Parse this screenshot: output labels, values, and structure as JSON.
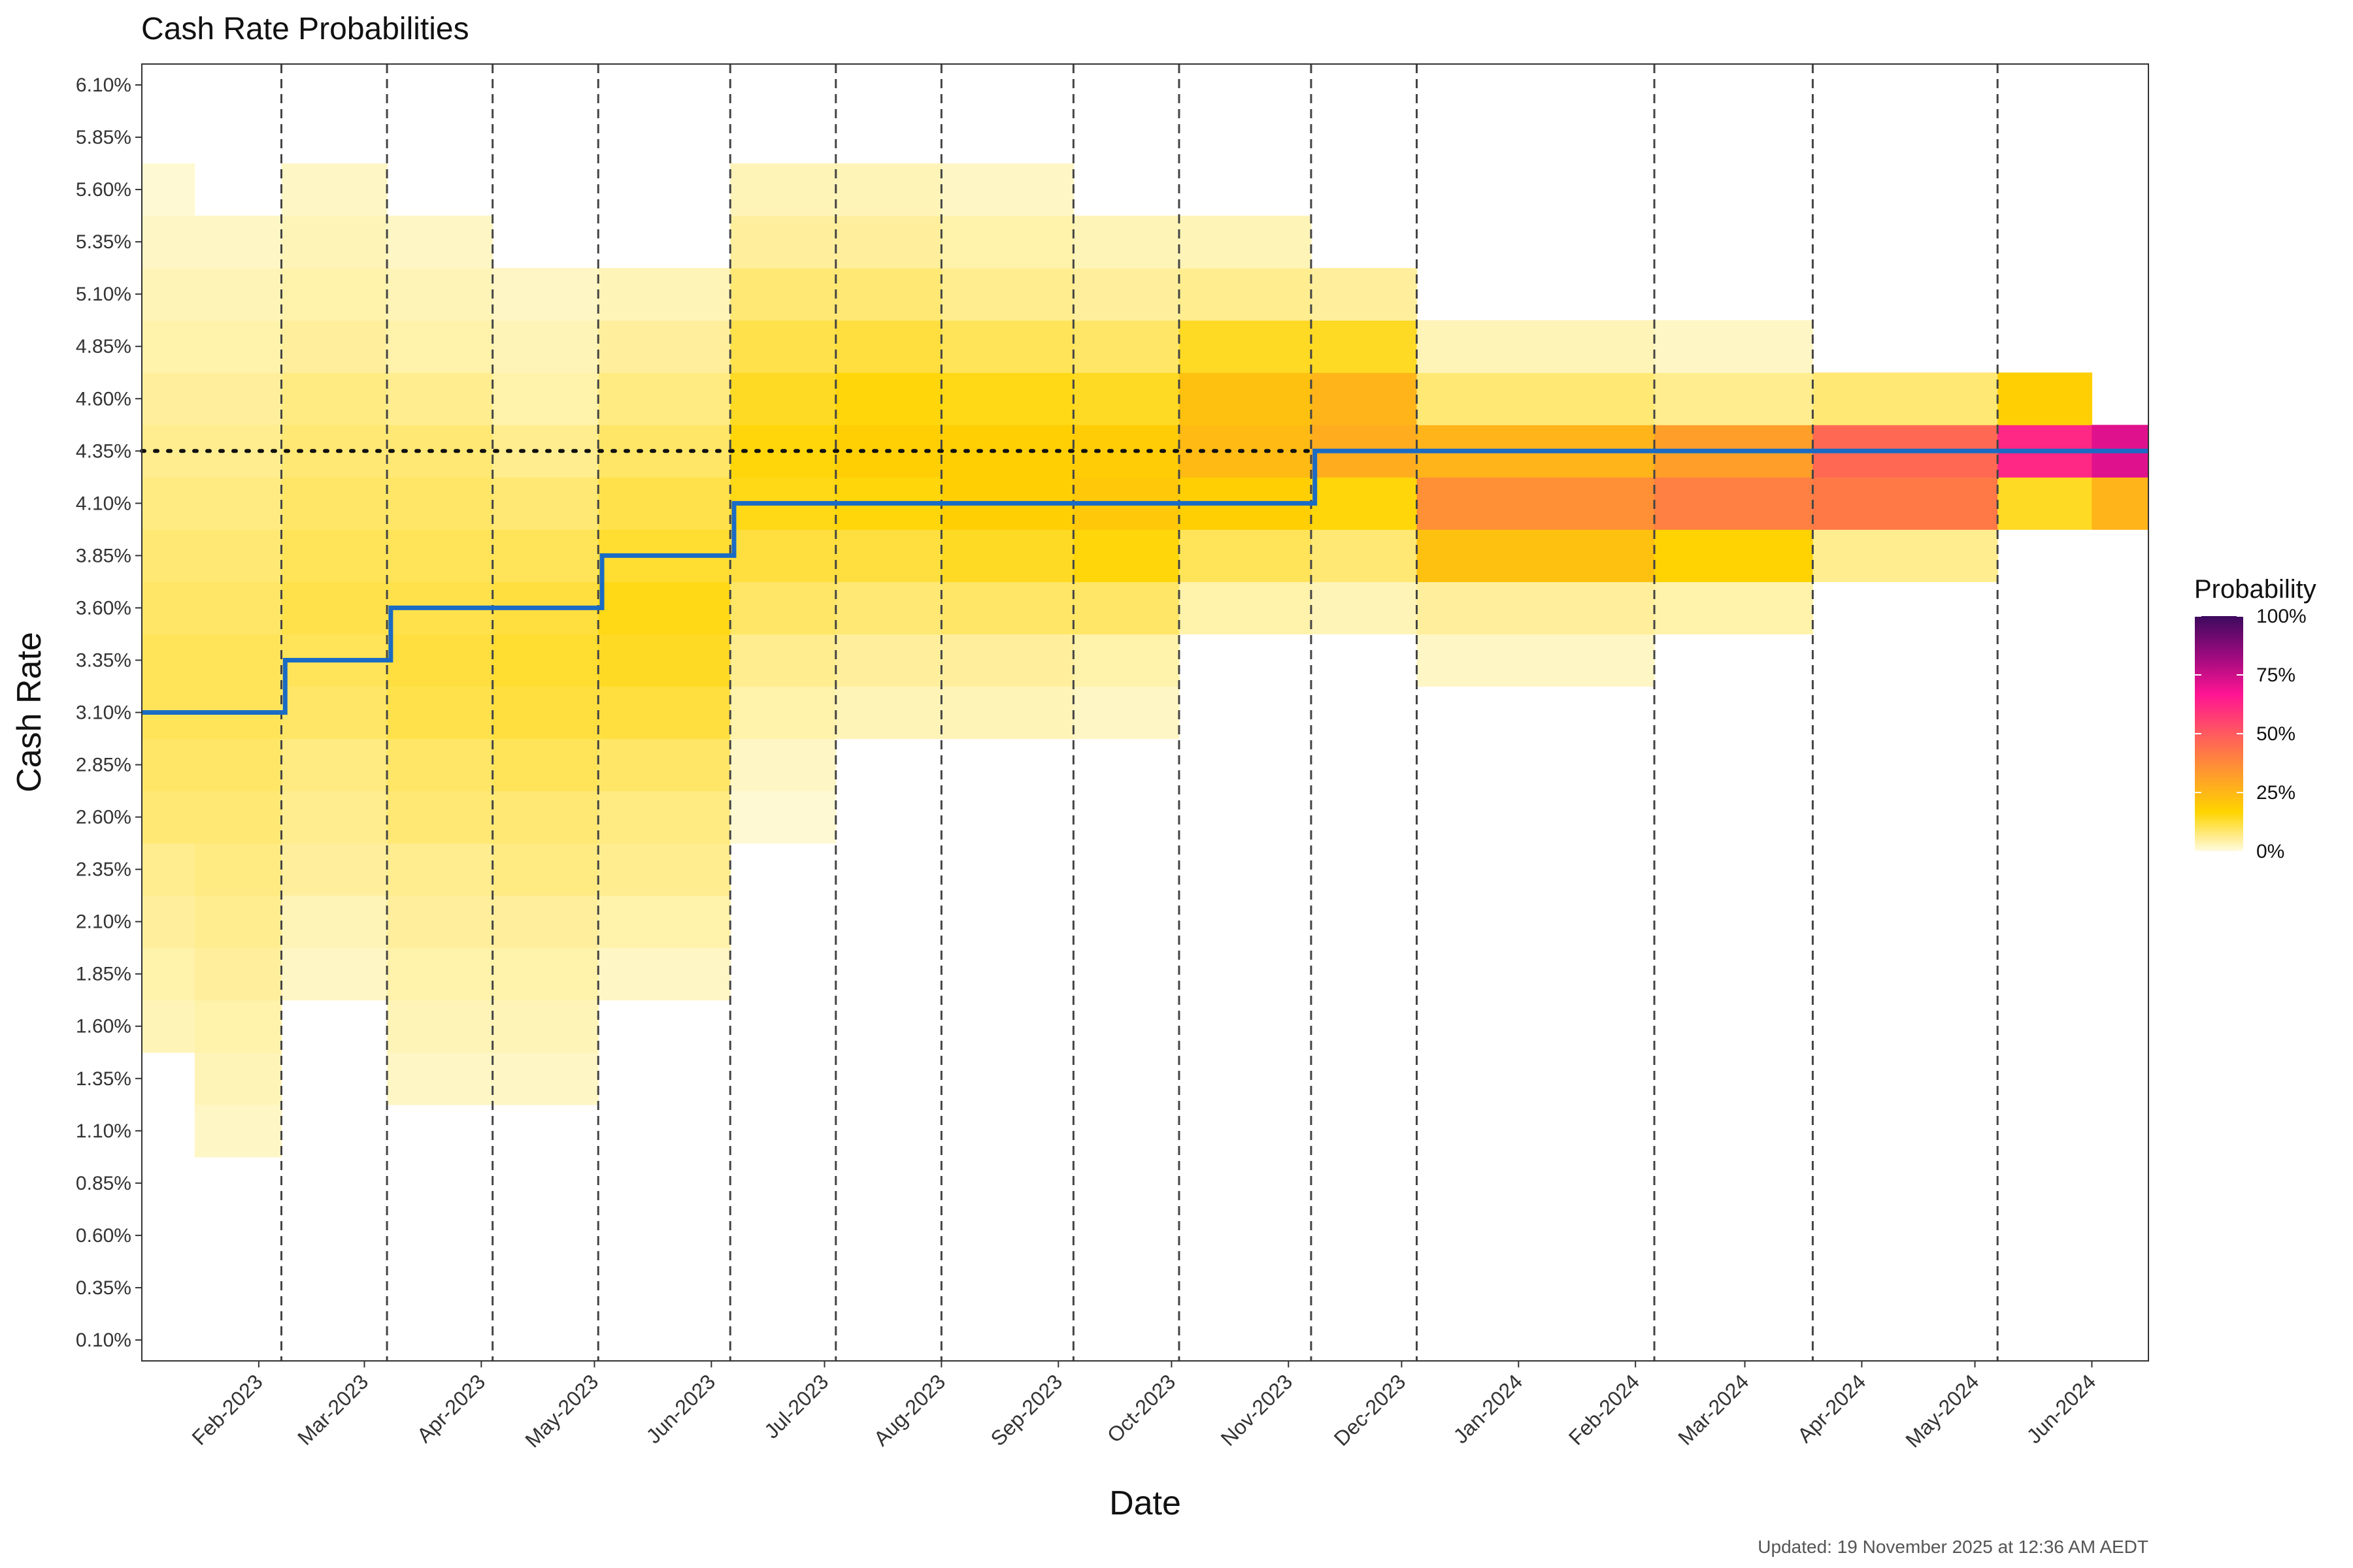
{
  "chart_data": {
    "type": "heatmap",
    "title": "Cash Rate Probabilities",
    "xlabel": "Date",
    "ylabel": "Cash Rate",
    "caption": "Updated: 19 November 2025 at 12:36 AM AEDT",
    "x_range": [
      "2023-01-01",
      "2024-06-16"
    ],
    "x_ticks": [
      {
        "date": "2023-02-01",
        "label": "Feb-2023"
      },
      {
        "date": "2023-03-01",
        "label": "Mar-2023"
      },
      {
        "date": "2023-04-01",
        "label": "Apr-2023"
      },
      {
        "date": "2023-05-01",
        "label": "May-2023"
      },
      {
        "date": "2023-06-01",
        "label": "Jun-2023"
      },
      {
        "date": "2023-07-01",
        "label": "Jul-2023"
      },
      {
        "date": "2023-08-01",
        "label": "Aug-2023"
      },
      {
        "date": "2023-09-01",
        "label": "Sep-2023"
      },
      {
        "date": "2023-10-01",
        "label": "Oct-2023"
      },
      {
        "date": "2023-11-01",
        "label": "Nov-2023"
      },
      {
        "date": "2023-12-01",
        "label": "Dec-2023"
      },
      {
        "date": "2024-01-01",
        "label": "Jan-2024"
      },
      {
        "date": "2024-02-01",
        "label": "Feb-2024"
      },
      {
        "date": "2024-03-01",
        "label": "Mar-2024"
      },
      {
        "date": "2024-04-01",
        "label": "Apr-2024"
      },
      {
        "date": "2024-05-01",
        "label": "May-2024"
      },
      {
        "date": "2024-06-01",
        "label": "Jun-2024"
      }
    ],
    "y_ticks": [
      "0.10%",
      "0.35%",
      "0.60%",
      "0.85%",
      "1.10%",
      "1.35%",
      "1.60%",
      "1.85%",
      "2.10%",
      "2.35%",
      "2.60%",
      "2.85%",
      "3.10%",
      "3.35%",
      "3.60%",
      "3.85%",
      "4.10%",
      "4.35%",
      "4.60%",
      "4.85%",
      "5.10%",
      "5.35%",
      "5.60%",
      "5.85%",
      "6.10%"
    ],
    "y_tick_values": [
      0.1,
      0.35,
      0.6,
      0.85,
      1.1,
      1.35,
      1.6,
      1.85,
      2.1,
      2.35,
      2.6,
      2.85,
      3.1,
      3.35,
      3.6,
      3.85,
      4.1,
      4.35,
      4.6,
      4.85,
      5.1,
      5.35,
      5.6,
      5.85,
      6.1
    ],
    "ylim": [
      0.0,
      6.2
    ],
    "meeting_dates": [
      "2023-02-07",
      "2023-03-07",
      "2023-04-04",
      "2023-05-02",
      "2023-06-06",
      "2023-07-04",
      "2023-08-01",
      "2023-09-05",
      "2023-10-03",
      "2023-11-07",
      "2023-12-05",
      "2024-02-06",
      "2024-03-19",
      "2024-05-07"
    ],
    "reference_line": {
      "value": 4.35,
      "style": "dotted"
    },
    "cash_rate_steps": [
      {
        "date": "2023-01-01",
        "rate": 3.1
      },
      {
        "date": "2023-02-08",
        "rate": 3.35
      },
      {
        "date": "2023-03-08",
        "rate": 3.6
      },
      {
        "date": "2023-05-03",
        "rate": 3.85
      },
      {
        "date": "2023-06-07",
        "rate": 4.1
      },
      {
        "date": "2023-11-08",
        "rate": 4.35
      }
    ],
    "heatmap_rates": [
      1.1,
      1.35,
      1.6,
      1.85,
      2.1,
      2.35,
      2.6,
      2.85,
      3.1,
      3.35,
      3.6,
      3.85,
      4.1,
      4.35,
      4.6,
      4.85,
      5.1,
      5.35,
      5.6
    ],
    "heatmap_columns": [
      {
        "start": "2023-01-01",
        "end": "2023-01-15",
        "p": [
          0,
          0,
          3,
          4,
          5,
          6,
          8,
          9,
          10,
          10,
          9,
          8,
          7,
          6,
          5,
          4,
          3,
          2,
          1
        ]
      },
      {
        "start": "2023-01-15",
        "end": "2023-02-07",
        "p": [
          2,
          3,
          4,
          5,
          6,
          7,
          8,
          9,
          10,
          10,
          9,
          8,
          7,
          6,
          5,
          4,
          3,
          2,
          0
        ]
      },
      {
        "start": "2023-02-07",
        "end": "2023-03-07",
        "p": [
          0,
          0,
          0,
          2,
          3,
          5,
          6,
          7,
          9,
          10,
          11,
          10,
          9,
          8,
          7,
          5,
          4,
          3,
          2
        ]
      },
      {
        "start": "2023-03-07",
        "end": "2023-04-04",
        "p": [
          0,
          2,
          3,
          4,
          5,
          6,
          8,
          9,
          11,
          12,
          11,
          10,
          9,
          8,
          6,
          4,
          3,
          2,
          0
        ]
      },
      {
        "start": "2023-04-04",
        "end": "2023-05-02",
        "p": [
          0,
          2,
          3,
          4,
          5,
          7,
          8,
          10,
          12,
          13,
          12,
          10,
          8,
          6,
          4,
          3,
          2,
          0,
          0
        ]
      },
      {
        "start": "2023-05-02",
        "end": "2023-06-06",
        "p": [
          0,
          0,
          0,
          2,
          4,
          6,
          7,
          9,
          12,
          14,
          15,
          13,
          11,
          9,
          7,
          5,
          3,
          0,
          0
        ]
      },
      {
        "start": "2023-06-06",
        "end": "2023-07-04",
        "p": [
          0,
          0,
          0,
          0,
          0,
          0,
          1,
          2,
          4,
          6,
          9,
          12,
          15,
          16,
          14,
          11,
          8,
          5,
          3
        ]
      },
      {
        "start": "2023-07-04",
        "end": "2023-08-01",
        "p": [
          0,
          0,
          0,
          0,
          0,
          0,
          0,
          0,
          3,
          5,
          8,
          12,
          16,
          18,
          16,
          12,
          8,
          5,
          3
        ]
      },
      {
        "start": "2023-08-01",
        "end": "2023-09-05",
        "p": [
          0,
          0,
          0,
          0,
          0,
          0,
          0,
          0,
          3,
          5,
          9,
          14,
          18,
          18,
          15,
          10,
          6,
          4,
          2
        ]
      },
      {
        "start": "2023-09-05",
        "end": "2023-10-03",
        "p": [
          0,
          0,
          0,
          0,
          0,
          0,
          0,
          0,
          2,
          4,
          9,
          16,
          20,
          19,
          14,
          9,
          5,
          3,
          0
        ]
      },
      {
        "start": "2023-10-03",
        "end": "2023-11-07",
        "p": [
          0,
          0,
          0,
          0,
          0,
          0,
          0,
          0,
          0,
          0,
          4,
          10,
          18,
          24,
          22,
          14,
          6,
          3,
          0
        ]
      },
      {
        "start": "2023-11-07",
        "end": "2023-12-05",
        "p": [
          0,
          0,
          0,
          0,
          0,
          0,
          0,
          0,
          0,
          0,
          3,
          8,
          16,
          28,
          26,
          14,
          5,
          0,
          0
        ]
      },
      {
        "start": "2023-12-05",
        "end": "2024-02-06",
        "p": [
          0,
          0,
          0,
          0,
          0,
          0,
          0,
          0,
          0,
          2,
          5,
          22,
          36,
          26,
          8,
          3,
          0,
          0,
          0
        ]
      },
      {
        "start": "2024-02-06",
        "end": "2024-03-19",
        "p": [
          0,
          0,
          0,
          0,
          0,
          0,
          0,
          0,
          0,
          0,
          4,
          17,
          40,
          32,
          6,
          2,
          0,
          0,
          0
        ]
      },
      {
        "start": "2024-03-19",
        "end": "2024-05-07",
        "p": [
          0,
          0,
          0,
          0,
          0,
          0,
          0,
          0,
          0,
          0,
          0,
          6,
          42,
          46,
          8,
          0,
          0,
          0,
          0
        ]
      },
      {
        "start": "2024-05-07",
        "end": "2024-06-01",
        "p": [
          0,
          0,
          0,
          0,
          0,
          0,
          0,
          0,
          0,
          0,
          0,
          0,
          14,
          62,
          18,
          0,
          0,
          0,
          0
        ]
      },
      {
        "start": "2024-06-01",
        "end": "2024-06-16",
        "p": [
          0,
          0,
          0,
          0,
          0,
          0,
          0,
          0,
          0,
          0,
          0,
          0,
          26,
          72,
          0,
          0,
          0,
          0,
          0
        ]
      }
    ],
    "legend": {
      "title": "Probability",
      "labels": [
        "0%",
        "25%",
        "50%",
        "75%",
        "100%"
      ],
      "colors": [
        "#FFFBE0",
        "#FFD400",
        "#FF9A2E",
        "#FF5A5F",
        "#FF1493",
        "#9B0A7E",
        "#3D0A5E"
      ]
    },
    "line_color": "#1A6BC4",
    "grid": false
  }
}
